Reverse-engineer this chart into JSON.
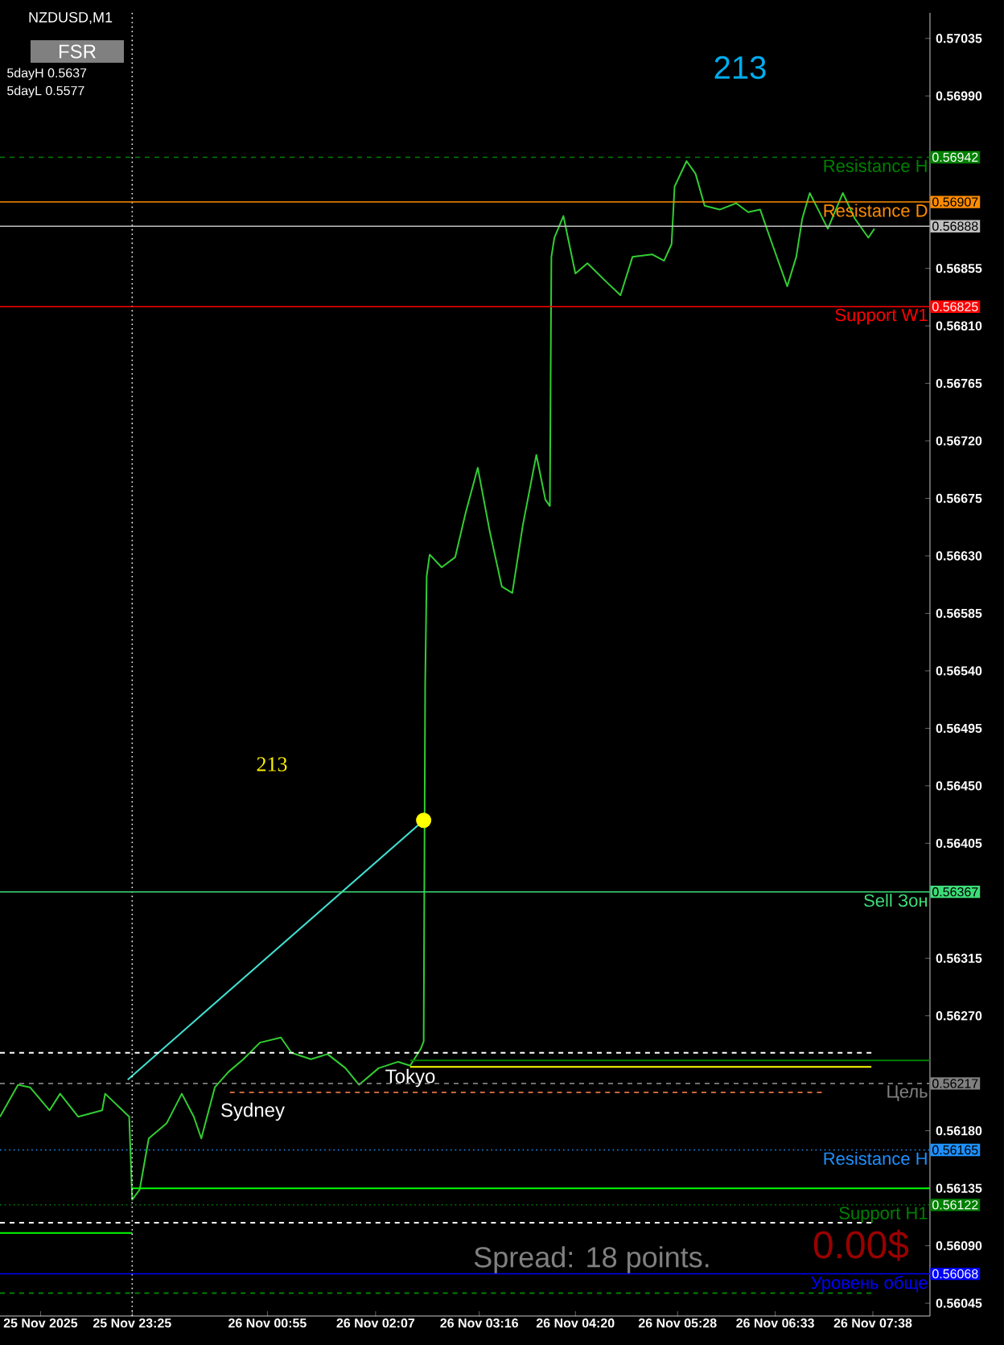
{
  "chart_data": {
    "type": "line",
    "title": "NZDUSD,M1",
    "xlim": [
      "2025-11-25T21:57",
      "2025-11-26T08:16"
    ],
    "ylim": [
      0.56035,
      0.57055
    ],
    "xticks": [
      {
        "value": "2025-11-25T22:24",
        "label": "25 Nov 2025"
      },
      {
        "value": "2025-11-25T23:25",
        "label": "25 Nov 23:25"
      },
      {
        "value": "2025-11-26T00:55",
        "label": "26 Nov 00:55"
      },
      {
        "value": "2025-11-26T02:07",
        "label": "26 Nov 02:07"
      },
      {
        "value": "2025-11-26T03:16",
        "label": "26 Nov 03:16"
      },
      {
        "value": "2025-11-26T04:20",
        "label": "26 Nov 04:20"
      },
      {
        "value": "2025-11-26T05:28",
        "label": "26 Nov 05:28"
      },
      {
        "value": "2025-11-26T06:33",
        "label": "26 Nov 06:33"
      },
      {
        "value": "2025-11-26T07:38",
        "label": "26 Nov 07:38"
      }
    ],
    "yticks": [
      {
        "value": 0.56045,
        "label": "0.56045"
      },
      {
        "value": 0.5609,
        "label": "0.56090"
      },
      {
        "value": 0.56135,
        "label": "0.56135"
      },
      {
        "value": 0.5618,
        "label": "0.56180"
      },
      {
        "value": 0.5627,
        "label": "0.56270"
      },
      {
        "value": 0.56315,
        "label": "0.56315"
      },
      {
        "value": 0.56405,
        "label": "0.56405"
      },
      {
        "value": 0.5645,
        "label": "0.56450"
      },
      {
        "value": 0.56495,
        "label": "0.56495"
      },
      {
        "value": 0.5654,
        "label": "0.56540"
      },
      {
        "value": 0.56585,
        "label": "0.56585"
      },
      {
        "value": 0.5663,
        "label": "0.56630"
      },
      {
        "value": 0.56675,
        "label": "0.56675"
      },
      {
        "value": 0.5672,
        "label": "0.56720"
      },
      {
        "value": 0.56765,
        "label": "0.56765"
      },
      {
        "value": 0.5681,
        "label": "0.56810"
      },
      {
        "value": 0.56855,
        "label": "0.56855"
      },
      {
        "value": 0.5699,
        "label": "0.56990"
      },
      {
        "value": 0.57035,
        "label": "0.57035"
      }
    ],
    "y2lim": [
      0.56035,
      0.57055
    ],
    "y2ticks": [
      {
        "value": 0.56942,
        "label": "0.56942"
      },
      {
        "value": 0.56907,
        "label": "0.56907"
      },
      {
        "value": 0.56888,
        "label": "0.56888"
      },
      {
        "value": 0.56825,
        "label": "0.56825"
      },
      {
        "value": 0.56367,
        "label": "0.56367"
      },
      {
        "value": 0.56217,
        "label": "0.56217"
      },
      {
        "value": 0.56165,
        "label": "0.56165"
      },
      {
        "value": 0.56122,
        "label": "0.56122"
      },
      {
        "value": 0.56068,
        "label": "0.56068"
      }
    ],
    "series": [
      {
        "color": "#32cd32",
        "x": [
          "2025-11-25T21:57",
          "2025-11-25T22:09",
          "2025-11-25T22:17",
          "2025-11-25T22:30",
          "2025-11-25T22:37",
          "2025-11-25T22:49",
          "2025-11-25T23:05",
          "2025-11-25T23:07",
          "2025-11-25T23:23",
          "2025-11-25T23:25",
          "2025-11-25T23:30",
          "2025-11-25T23:36",
          "2025-11-25T23:48",
          "2025-11-25T23:58",
          "2025-11-26T00:06",
          "2025-11-26T00:11",
          "2025-11-26T00:20",
          "2025-11-26T00:29",
          "2025-11-26T00:39",
          "2025-11-26T00:50",
          "2025-11-26T01:04",
          "2025-11-26T01:11",
          "2025-11-26T01:24",
          "2025-11-26T01:35",
          "2025-11-26T01:47",
          "2025-11-26T01:56",
          "2025-11-26T02:09",
          "2025-11-26T02:22",
          "2025-11-26T02:30",
          "2025-11-26T02:37",
          "2025-11-26T02:39",
          "2025-11-26T02:40",
          "2025-11-26T02:41",
          "2025-11-26T02:43",
          "2025-11-26T02:51",
          "2025-11-26T03:00",
          "2025-11-26T03:07",
          "2025-11-26T03:15",
          "2025-11-26T03:23",
          "2025-11-26T03:31",
          "2025-11-26T03:38",
          "2025-11-26T03:45",
          "2025-11-26T03:54",
          "2025-11-26T04:00",
          "2025-11-26T04:03",
          "2025-11-26T04:04",
          "2025-11-26T04:06",
          "2025-11-26T04:12",
          "2025-11-26T04:20",
          "2025-11-26T04:28",
          "2025-11-26T04:41",
          "2025-11-26T04:50",
          "2025-11-26T04:58",
          "2025-11-26T05:11",
          "2025-11-26T05:19",
          "2025-11-26T05:24",
          "2025-11-26T05:26",
          "2025-11-26T05:34",
          "2025-11-26T05:40",
          "2025-11-26T05:46",
          "2025-11-26T05:56",
          "2025-11-26T06:07",
          "2025-11-26T06:15",
          "2025-11-26T06:23",
          "2025-11-26T06:31",
          "2025-11-26T06:41",
          "2025-11-26T06:47",
          "2025-11-26T06:51",
          "2025-11-26T06:56",
          "2025-11-26T07:08",
          "2025-11-26T07:18",
          "2025-11-26T07:26",
          "2025-11-26T07:35",
          "2025-11-26T07:39"
        ],
        "values": [
          0.56191,
          0.56216,
          0.56214,
          0.56196,
          0.56209,
          0.56191,
          0.56196,
          0.56209,
          0.56191,
          0.56126,
          0.56134,
          0.56174,
          0.56186,
          0.56209,
          0.56191,
          0.56174,
          0.56214,
          0.56226,
          0.56236,
          0.56249,
          0.56253,
          0.56241,
          0.56236,
          0.5624,
          0.56229,
          0.56216,
          0.56229,
          0.56234,
          0.56231,
          0.56244,
          0.5625,
          0.56529,
          0.56614,
          0.56631,
          0.56621,
          0.56629,
          0.56664,
          0.56699,
          0.56649,
          0.56606,
          0.56601,
          0.56654,
          0.56709,
          0.56674,
          0.56669,
          0.56864,
          0.56879,
          0.56896,
          0.56851,
          0.56859,
          0.56844,
          0.56834,
          0.56864,
          0.56866,
          0.56861,
          0.56874,
          0.56919,
          0.56939,
          0.56929,
          0.56904,
          0.56901,
          0.56906,
          0.56899,
          0.56901,
          0.56874,
          0.56841,
          0.56864,
          0.56894,
          0.56914,
          0.56886,
          0.56914,
          0.56894,
          0.56879,
          0.56886
        ]
      },
      {
        "type": "line",
        "color": "#40e0d0",
        "x": [
          "2025-11-25T23:22",
          "2025-11-26T02:39"
        ],
        "values": [
          0.5622,
          0.56423
        ]
      },
      {
        "type": "scatter",
        "color": "#ffff00",
        "x": [
          "2025-11-26T02:39"
        ],
        "values": [
          0.56423
        ]
      },
      {
        "type": "line",
        "color": "#ffffff",
        "line_style": "dashed",
        "x": [
          "2025-11-25T21:57",
          "2025-11-26T07:37"
        ],
        "values": [
          0.56241,
          0.56241
        ]
      },
      {
        "type": "line",
        "color": "#008000",
        "x": [
          "2025-11-26T02:30",
          "2025-11-26T08:16"
        ],
        "values": [
          0.56235,
          0.56235
        ]
      },
      {
        "type": "line",
        "color": "#ffff00",
        "x": [
          "2025-11-26T02:30",
          "2025-11-26T07:37"
        ],
        "values": [
          0.5623,
          0.5623
        ]
      },
      {
        "type": "line",
        "color": "#c8643c",
        "line_style": "dashed",
        "x": [
          "2025-11-26T00:30",
          "2025-11-26T07:04"
        ],
        "values": [
          0.5621,
          0.5621
        ]
      },
      {
        "type": "line",
        "color": "#00ff00",
        "x": [
          "2025-11-25T23:25",
          "2025-11-26T08:16"
        ],
        "values": [
          0.56135,
          0.56135
        ]
      },
      {
        "type": "line",
        "color": "#00ff00",
        "x": [
          "2025-11-25T21:57",
          "2025-11-25T23:25"
        ],
        "values": [
          0.561,
          0.561
        ]
      },
      {
        "type": "line",
        "color": "#ffffff",
        "line_style": "dashed",
        "x": [
          "2025-11-25T21:57",
          "2025-11-26T07:37"
        ],
        "values": [
          0.56108,
          0.56108
        ]
      },
      {
        "type": "line",
        "color": "#008000",
        "line_style": "dashed",
        "x": [
          "2025-11-25T21:57",
          "2025-11-26T07:37"
        ],
        "values": [
          0.56053,
          0.56053
        ]
      }
    ],
    "ref_lines": [
      {
        "axis": "x",
        "value": "2025-11-25T23:25",
        "color": "#ffffff",
        "line_style": "dotted"
      },
      {
        "axis": "y",
        "value": 0.56942,
        "label": "Resistance H",
        "color": "#008000",
        "line_style": "dashed"
      },
      {
        "axis": "y",
        "value": 0.56907,
        "label": "Resistance D",
        "color": "#ff8c00",
        "line_style": "solid"
      },
      {
        "axis": "y",
        "value": 0.56888,
        "color": "#c0c0c0",
        "line_style": "solid"
      },
      {
        "axis": "y",
        "value": 0.56825,
        "label": "Support W1",
        "color": "#ff0000",
        "line_style": "solid"
      },
      {
        "axis": "y",
        "value": 0.56367,
        "label": "Sell Зон",
        "color": "#3cdc78",
        "line_style": "solid"
      },
      {
        "axis": "y",
        "value": 0.56217,
        "label": "Цель",
        "color": "#808080",
        "line_style": "dashed"
      },
      {
        "axis": "y",
        "value": 0.56165,
        "label": "Resistance H",
        "color": "#1e90ff",
        "line_style": "dotted"
      },
      {
        "axis": "y",
        "value": 0.56122,
        "label": "Support H1",
        "color": "#008000",
        "line_style": "dotted"
      },
      {
        "axis": "y",
        "value": 0.56068,
        "label": "Уровень обще",
        "color": "#0000ff",
        "line_style": "solid"
      }
    ],
    "annotations": [
      "5dayH 0.5637",
      "5dayL 0.5577",
      "FSR",
      "213",
      "Spread: 18 points.",
      "0.00$",
      "213",
      "Sydney",
      "Tokyo"
    ]
  }
}
